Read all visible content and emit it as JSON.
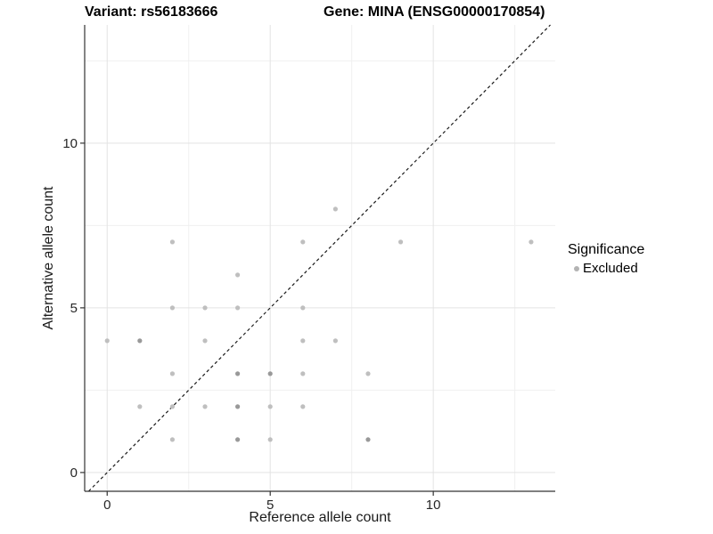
{
  "header": {
    "left_title": "Variant: rs56183666",
    "right_title": "Gene: MINA (ENSG00000170854)"
  },
  "legend": {
    "title": "Significance",
    "items": [
      {
        "label": "Excluded",
        "color": "#b3b3b3"
      }
    ]
  },
  "colors": {
    "point_light": "#bfbfbf",
    "point_dark": "#999999",
    "grid_major": "#e3e3e3",
    "grid_minor": "#f0f0f0",
    "axis_line": "#333333",
    "tick_text": "#262626",
    "identity_line": "#1a1a1a"
  },
  "chart_data": {
    "type": "scatter",
    "title": "",
    "xlabel": "Reference allele count",
    "ylabel": "Alternative allele count",
    "xlim": [
      -0.69,
      13.74
    ],
    "ylim": [
      -0.57,
      13.59
    ],
    "x_ticks": [
      0,
      5,
      10
    ],
    "y_ticks": [
      0,
      5,
      10
    ],
    "x_minor_ticks": [
      2.5,
      7.5,
      12.5
    ],
    "y_minor_ticks": [
      2.5,
      7.5,
      12.5
    ],
    "grid": true,
    "legend_position": "right",
    "identity_line": {
      "slope": 1,
      "intercept": 0,
      "style": "dashed"
    },
    "series": [
      {
        "name": "Excluded",
        "points": [
          {
            "x": 0,
            "y": 4,
            "shade": "light"
          },
          {
            "x": 1,
            "y": 4,
            "shade": "dark"
          },
          {
            "x": 1,
            "y": 2,
            "shade": "light"
          },
          {
            "x": 2,
            "y": 7,
            "shade": "light"
          },
          {
            "x": 2,
            "y": 5,
            "shade": "light"
          },
          {
            "x": 2,
            "y": 3,
            "shade": "light"
          },
          {
            "x": 2,
            "y": 2,
            "shade": "light"
          },
          {
            "x": 2,
            "y": 1,
            "shade": "light"
          },
          {
            "x": 3,
            "y": 5,
            "shade": "light"
          },
          {
            "x": 3,
            "y": 4,
            "shade": "light"
          },
          {
            "x": 3,
            "y": 2,
            "shade": "light"
          },
          {
            "x": 4,
            "y": 6,
            "shade": "light"
          },
          {
            "x": 4,
            "y": 5,
            "shade": "light"
          },
          {
            "x": 4,
            "y": 3,
            "shade": "dark"
          },
          {
            "x": 4,
            "y": 2,
            "shade": "dark"
          },
          {
            "x": 4,
            "y": 1,
            "shade": "dark"
          },
          {
            "x": 5,
            "y": 3,
            "shade": "dark"
          },
          {
            "x": 5,
            "y": 2,
            "shade": "light"
          },
          {
            "x": 5,
            "y": 1,
            "shade": "light"
          },
          {
            "x": 6,
            "y": 7,
            "shade": "light"
          },
          {
            "x": 6,
            "y": 5,
            "shade": "light"
          },
          {
            "x": 6,
            "y": 4,
            "shade": "light"
          },
          {
            "x": 6,
            "y": 3,
            "shade": "light"
          },
          {
            "x": 6,
            "y": 2,
            "shade": "light"
          },
          {
            "x": 7,
            "y": 8,
            "shade": "light"
          },
          {
            "x": 7,
            "y": 4,
            "shade": "light"
          },
          {
            "x": 8,
            "y": 3,
            "shade": "light"
          },
          {
            "x": 8,
            "y": 1,
            "shade": "dark"
          },
          {
            "x": 9,
            "y": 7,
            "shade": "light"
          },
          {
            "x": 13,
            "y": 7,
            "shade": "light"
          }
        ]
      }
    ]
  }
}
